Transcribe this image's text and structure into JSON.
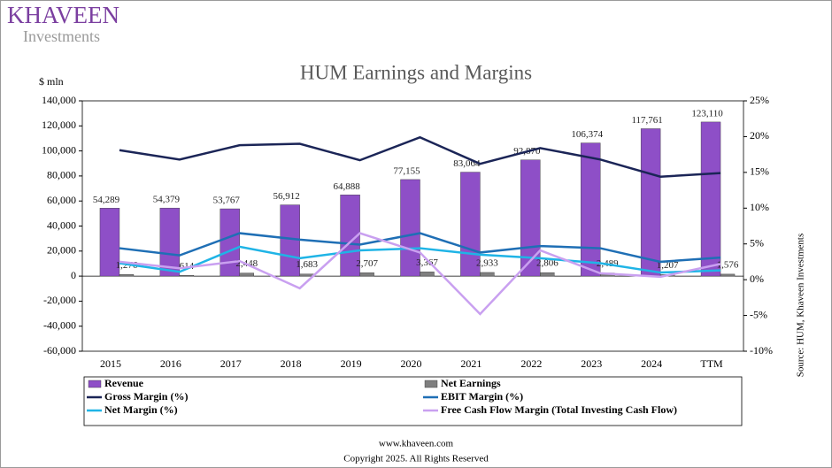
{
  "header": {
    "logo": "KHAVEEN",
    "logo_sub": "Investments"
  },
  "chart_data": {
    "type": "combo",
    "title": "HUM Earnings and Margins",
    "y_label": "$ mln",
    "source": "Source: HUM, Khaveen Investments",
    "categories": [
      "2015",
      "2016",
      "2017",
      "2018",
      "2019",
      "2020",
      "2021",
      "2022",
      "2023",
      "2024",
      "TTM"
    ],
    "ylim": [
      -60000,
      140000
    ],
    "yticks": [
      {
        "value": -60000,
        "label": "-60,000"
      },
      {
        "value": -40000,
        "label": "-40,000"
      },
      {
        "value": -20000,
        "label": "-20,000"
      },
      0,
      {
        "value": 20000,
        "label": "20,000"
      },
      {
        "value": 40000,
        "label": "40,000"
      },
      {
        "value": 60000,
        "label": "60,000"
      },
      {
        "value": 80000,
        "label": "80,000"
      },
      {
        "value": 100000,
        "label": "100,000"
      },
      {
        "value": 120000,
        "label": "120,000"
      },
      {
        "value": 140000,
        "label": "140,000"
      }
    ],
    "y2lim": [
      -10,
      25
    ],
    "y2ticks": [
      {
        "value": -10,
        "label": "-10%"
      },
      {
        "value": -5,
        "label": "-5%"
      },
      {
        "value": 0,
        "label": "0%"
      },
      {
        "value": 5,
        "label": "5%"
      },
      {
        "value": 10,
        "label": "10%"
      },
      {
        "value": 15,
        "label": "15%"
      },
      {
        "value": 20,
        "label": "20%"
      },
      {
        "value": 25,
        "label": "25%"
      }
    ],
    "series": [
      {
        "name": "Revenue",
        "type": "bar",
        "color": "#8e4fc7",
        "values": [
          54289,
          54379,
          53767,
          56912,
          64888,
          77155,
          83064,
          92870,
          106374,
          117761,
          123110
        ],
        "value_labels": [
          "54,289",
          "54,379",
          "53,767",
          "56,912",
          "64,888",
          "77,155",
          "83,064",
          "92,870",
          "106,374",
          "117,761",
          "123,110"
        ]
      },
      {
        "name": "Net Earnings",
        "type": "bar",
        "color": "#7f7f7f",
        "values": [
          1276,
          614,
          2448,
          1683,
          2707,
          3367,
          2933,
          2806,
          2489,
          1207,
          1576
        ],
        "value_labels": [
          "1,276",
          "614",
          "2,448",
          "1,683",
          "2,707",
          "3,367",
          "2,933",
          "2,806",
          "2,489",
          "1,207",
          "1,576"
        ]
      },
      {
        "name": "Gross Margin (%)",
        "type": "line",
        "axis": "y2",
        "color": "#1b2557",
        "values": [
          18.1,
          16.8,
          18.8,
          19.0,
          16.7,
          19.9,
          16.2,
          18.4,
          16.8,
          14.4,
          14.9
        ]
      },
      {
        "name": "EBIT Margin (%)",
        "type": "line",
        "axis": "y2",
        "color": "#1f6fb5",
        "values": [
          4.4,
          3.4,
          6.5,
          5.6,
          4.9,
          6.5,
          3.8,
          4.7,
          4.4,
          2.5,
          3.1
        ]
      },
      {
        "name": "Net Margin (%)",
        "type": "line",
        "axis": "y2",
        "color": "#1fb4e6",
        "values": [
          2.3,
          1.1,
          4.6,
          3.0,
          4.1,
          4.4,
          3.5,
          3.0,
          2.3,
          1.0,
          1.3
        ]
      },
      {
        "name": "Free Cash Flow Margin (Total Investing Cash Flow)",
        "type": "line",
        "axis": "y2",
        "color": "#c9a0f0",
        "values": [
          2.5,
          1.6,
          2.6,
          -1.2,
          6.5,
          3.8,
          -4.8,
          4.1,
          0.9,
          0.4,
          2.2
        ]
      }
    ]
  },
  "footer": {
    "website": "www.khaveen.com",
    "copyright": "Copyright 2025.  All Rights Reserved"
  }
}
